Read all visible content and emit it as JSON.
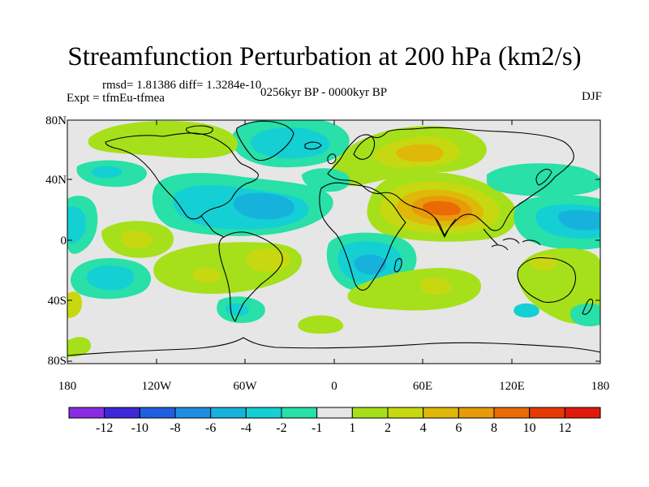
{
  "title": "Streamfunction Perturbation at 200 hPa (km2/s)",
  "stats": "rmsd= 1.81386  diff= 1.3284e-10",
  "experiment": "Expt = tfmEu-tfmea",
  "period": "0256kyr BP - 0000kyr BP",
  "season": "DJF",
  "axes": {
    "lat_ticks": [
      "80N",
      "40N",
      "0",
      "40S",
      "80S"
    ],
    "lon_ticks": [
      "180",
      "120W",
      "60W",
      "0",
      "60E",
      "120E",
      "180"
    ]
  },
  "colorbar": {
    "labels": [
      "-12",
      "-10",
      "-8",
      "-6",
      "-4",
      "-2",
      "-1",
      "1",
      "2",
      "4",
      "6",
      "8",
      "10",
      "12"
    ],
    "colors": [
      "#8a2be2",
      "#3c28d8",
      "#1f5fe0",
      "#1e8fe0",
      "#17b2dc",
      "#14cfd4",
      "#28e0a8",
      "#e6e6e6",
      "#a6e01a",
      "#c8d810",
      "#e0b80a",
      "#e89a08",
      "#ea6a06",
      "#e63a06",
      "#e01a0a"
    ]
  },
  "chart_data": {
    "type": "filled-contour map",
    "variable": "200 hPa streamfunction perturbation",
    "units": "km2/s",
    "levels": [
      -12,
      -10,
      -8,
      -6,
      -4,
      -2,
      -1,
      1,
      2,
      4,
      6,
      8,
      10,
      12
    ],
    "lat_range": [
      -90,
      90
    ],
    "lon_range": [
      -180,
      180
    ],
    "features": [
      {
        "region": "South Asia / Arabian Sea",
        "sign": "positive",
        "peak": 8
      },
      {
        "region": "Europe / Mediterranean",
        "sign": "positive",
        "peak": 4
      },
      {
        "region": "Southern Africa",
        "sign": "positive",
        "peak": 2
      },
      {
        "region": "Tropical Atlantic",
        "sign": "negative",
        "peak": -4
      },
      {
        "region": "Southern Africa west coast",
        "sign": "negative",
        "peak": -4
      },
      {
        "region": "Western Pacific",
        "sign": "negative",
        "peak": -4
      },
      {
        "region": "Eastern Pacific",
        "sign": "negative",
        "peak": -4
      },
      {
        "region": "Greenland",
        "sign": "negative",
        "peak": -2
      }
    ]
  }
}
